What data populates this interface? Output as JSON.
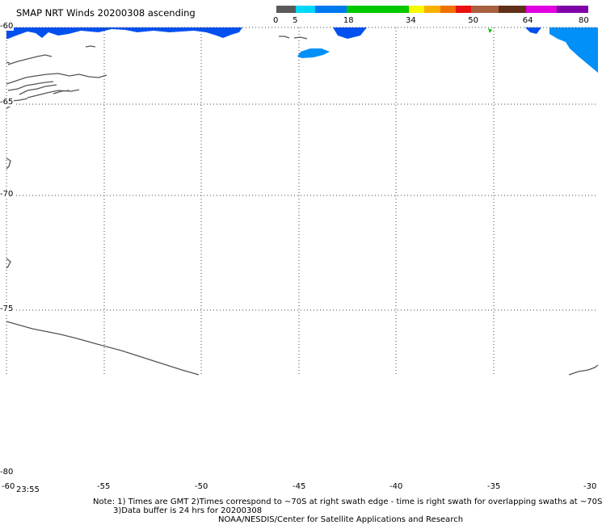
{
  "title": "SMAP NRT Winds 20200308 ascending",
  "legend": {
    "segments": [
      {
        "color": "#5a5a5a",
        "units": 5
      },
      {
        "color": "#00d8f8",
        "units": 5
      },
      {
        "color": "#0078f0",
        "units": 8
      },
      {
        "color": "#00c800",
        "units": 16
      },
      {
        "color": "#f8f800",
        "units": 4
      },
      {
        "color": "#f8b000",
        "units": 4
      },
      {
        "color": "#f07000",
        "units": 4
      },
      {
        "color": "#e81010",
        "units": 4
      },
      {
        "color": "#a86040",
        "units": 7
      },
      {
        "color": "#603018",
        "units": 7
      },
      {
        "color": "#e000e0",
        "units": 8
      },
      {
        "color": "#8000a8",
        "units": 8
      }
    ],
    "labels": [
      {
        "text": "0",
        "value": 0
      },
      {
        "text": "5",
        "value": 5
      },
      {
        "text": "18",
        "value": 18
      },
      {
        "text": "34",
        "value": 34
      },
      {
        "text": "50",
        "value": 50
      },
      {
        "text": "64",
        "value": 64
      },
      {
        "text": "80",
        "value": 80
      }
    ]
  },
  "map": {
    "lon_range": [
      -60,
      -30
    ],
    "lat_range": [
      -80,
      -60
    ],
    "lon_ticks": [
      "-60",
      "-55",
      "-50",
      "-45",
      "-40",
      "-35",
      "-30"
    ],
    "lat_ticks": [
      "-60",
      "-65",
      "-70",
      "-75",
      "-80"
    ],
    "land_color": "#555555",
    "wind_colors": [
      "#0050f0",
      "#0090f8",
      "#00c800"
    ]
  },
  "time_label": "23:55",
  "notes": {
    "line1": "Note: 1) Times are GMT 2)Times correspond to ~70S at right swath edge - time is right swath for overlapping swaths at ~70S",
    "line2": "3)Data buffer is 24 hrs for 20200308",
    "line3": "NOAA/NESDIS/Center for Satellite Applications and Research"
  }
}
